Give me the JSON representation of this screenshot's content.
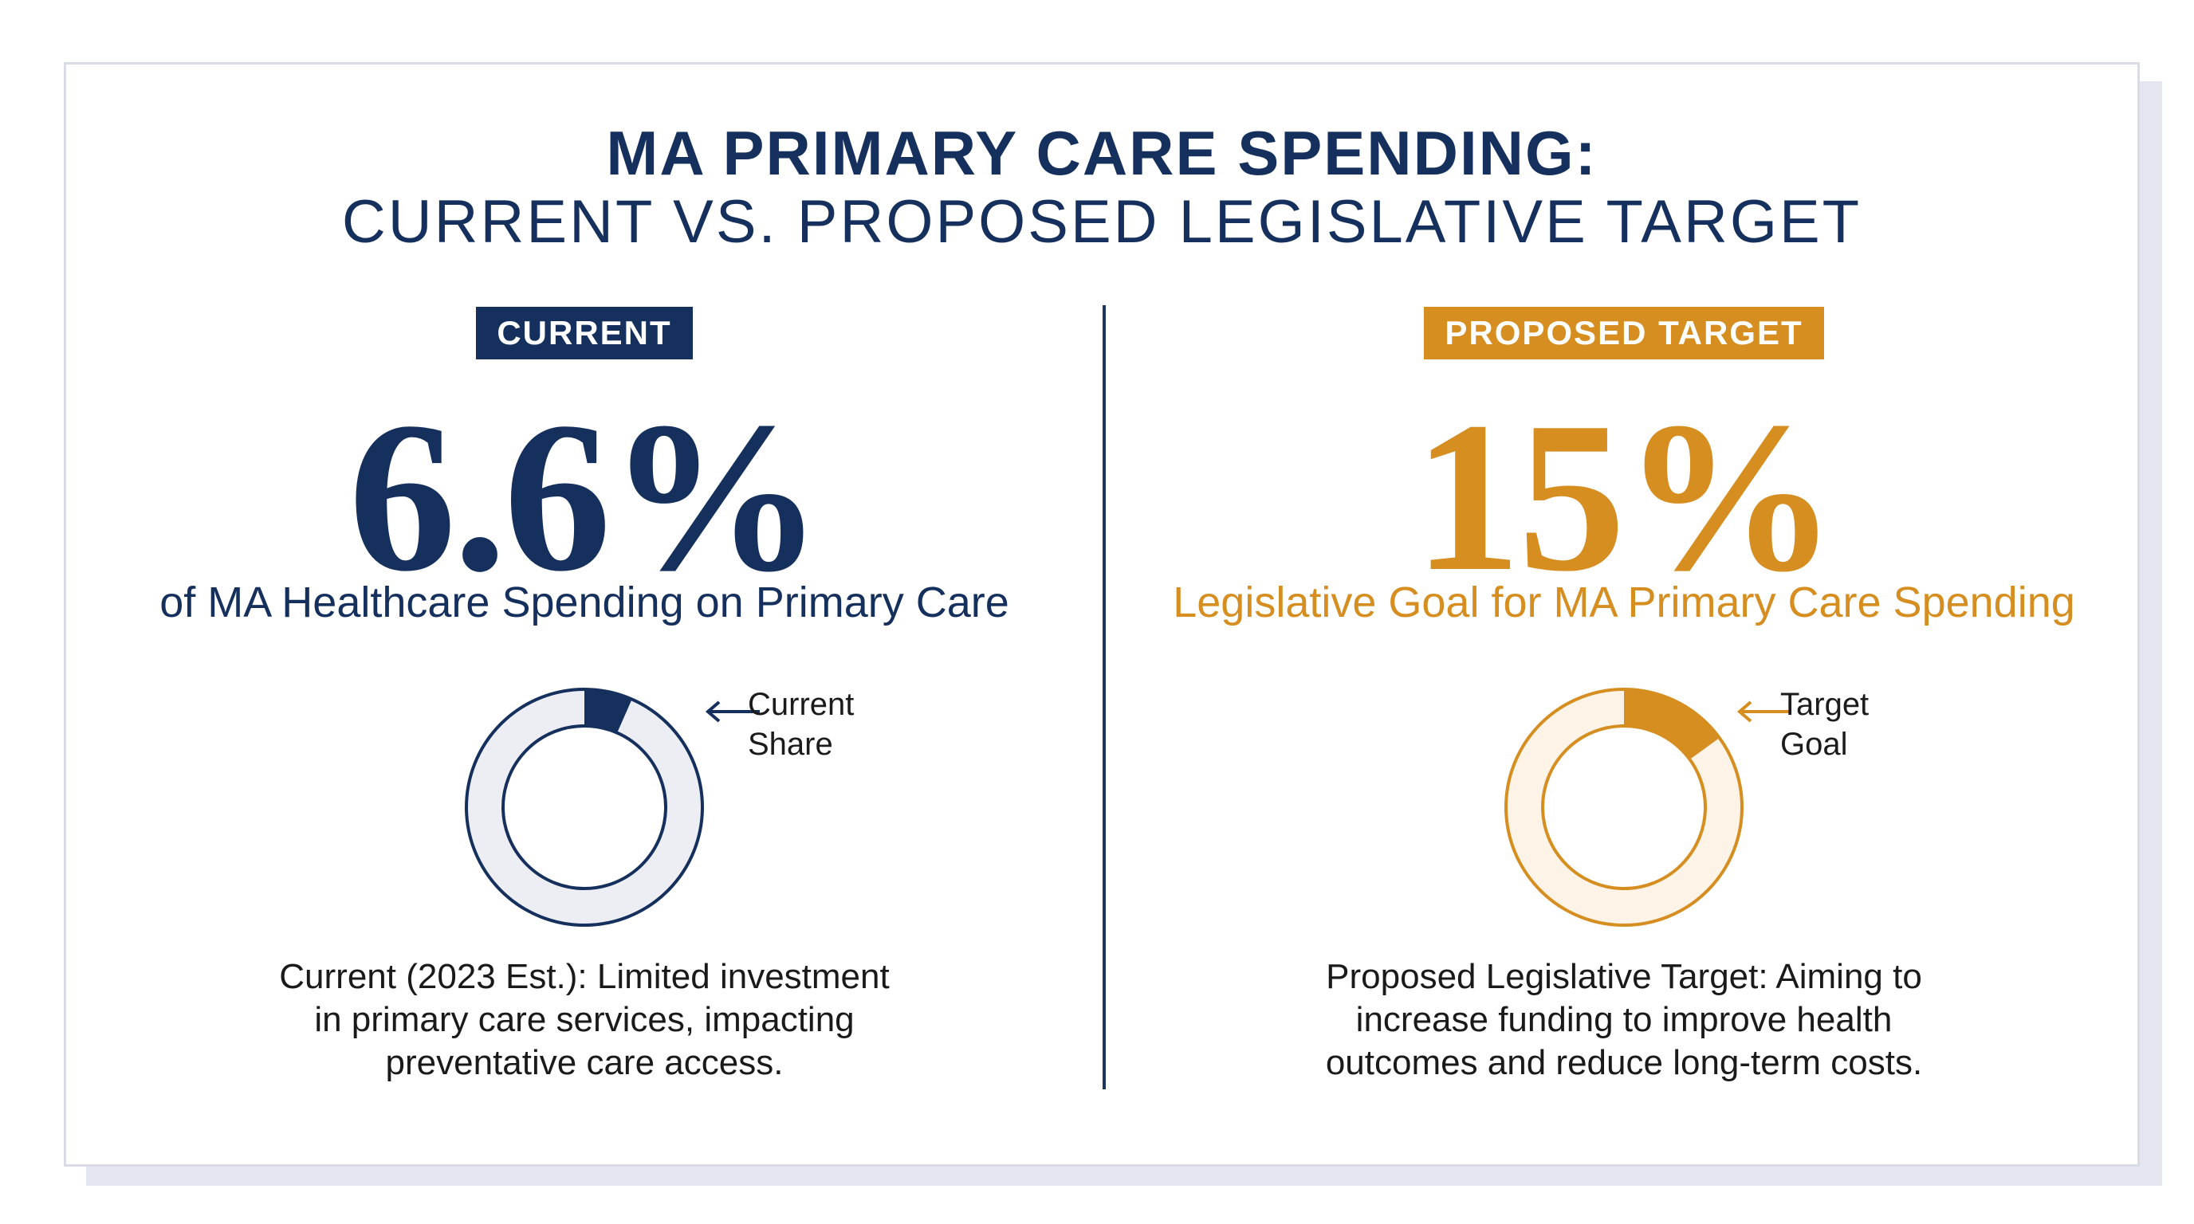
{
  "title": {
    "line1": "MA PRIMARY CARE SPENDING:",
    "line2": "CURRENT VS. PROPOSED LEGISLATIVE TARGET"
  },
  "colors": {
    "navy": "#16305e",
    "gold": "#d58e1f",
    "navy_track": "#eceef4",
    "gold_track": "#fdf3e6"
  },
  "chart_data": [
    {
      "type": "pie",
      "badge": "CURRENT",
      "value_label": "6.6%",
      "value": 6.6,
      "max": 100,
      "subtitle": "of MA Healthcare Spending on Primary Care",
      "annotation": [
        "Current",
        "Share"
      ],
      "description": [
        "Current (2023 Est.): Limited investment",
        "in primary care services, impacting",
        "preventative care access."
      ]
    },
    {
      "type": "pie",
      "badge": "PROPOSED TARGET",
      "value_label": "15%",
      "value": 15,
      "max": 100,
      "subtitle": "Legislative Goal for MA Primary Care Spending",
      "annotation": [
        "Target",
        "Goal"
      ],
      "description": [
        "Proposed Legislative Target: Aiming to",
        "increase funding to improve health",
        "outcomes and reduce long-term costs."
      ]
    }
  ]
}
